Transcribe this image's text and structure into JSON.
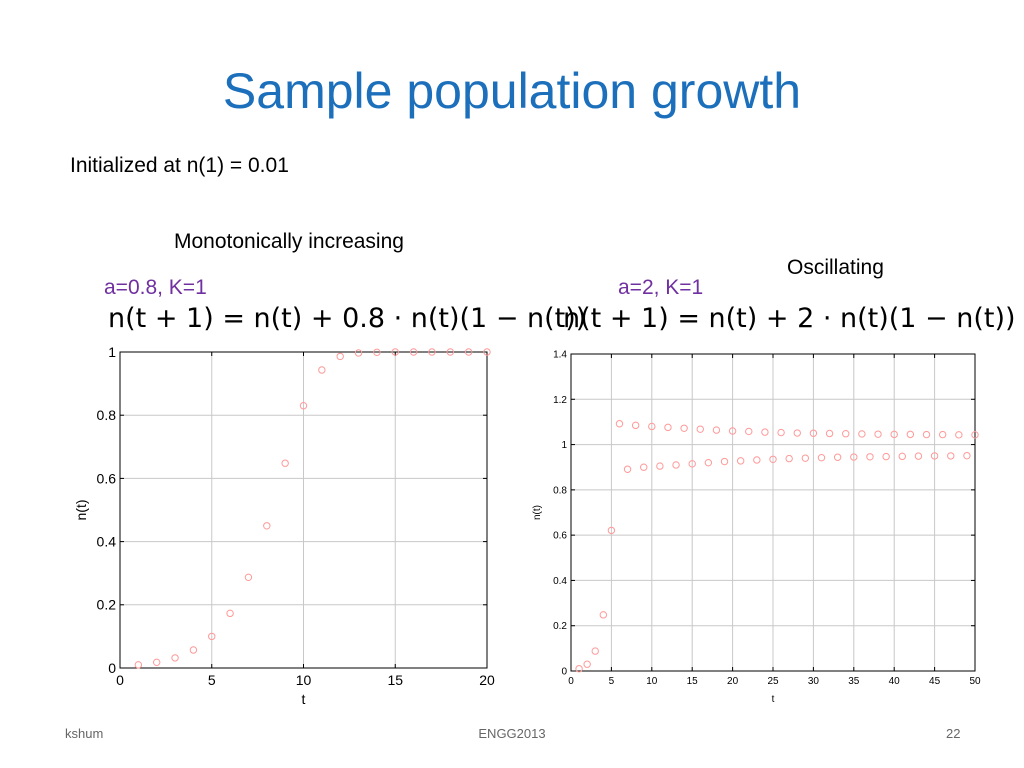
{
  "slide": {
    "title": "Sample population growth",
    "subtitle": "Initialized at n(1) = 0.01",
    "label_left": "Monotonically increasing",
    "label_right": "Oscillating",
    "params_left": "a=0.8, K=1",
    "params_right": "a=2, K=1",
    "equation_left": {
      "lhs": "n(t + 1) = n(t) + 0.8 · n(t)(1 − n(t))"
    },
    "equation_right": {
      "lhs": "n(t + 1) = n(t) + 2 · n(t)(1 − n(t))"
    },
    "footer_left": "kshum",
    "footer_center": "ENGG2013",
    "footer_right": "22",
    "marker_color": "#ff9999",
    "grid_color": "#c8c8c8"
  },
  "chart_data": [
    {
      "type": "scatter",
      "xlabel": "t",
      "ylabel": "n(t)",
      "xlim": [
        0,
        20
      ],
      "ylim": [
        0,
        1
      ],
      "xticks": [
        0,
        5,
        10,
        15,
        20
      ],
      "yticks": [
        0,
        0.2,
        0.4,
        0.6,
        0.8,
        1
      ],
      "xtick_labels": [
        "0",
        "5",
        "10",
        "15",
        "20"
      ],
      "ytick_labels": [
        "0",
        "0.2",
        "0.4",
        "0.6",
        "0.8",
        "1"
      ],
      "grid": true,
      "marker": "circle",
      "x": [
        1,
        2,
        3,
        4,
        5,
        6,
        7,
        8,
        9,
        10,
        11,
        12,
        13,
        14,
        15,
        16,
        17,
        18,
        19,
        20
      ],
      "y": [
        0.01,
        0.018,
        0.032,
        0.057,
        0.1,
        0.173,
        0.287,
        0.45,
        0.648,
        0.83,
        0.943,
        0.986,
        0.997,
        0.999,
        1,
        1,
        1,
        1,
        1,
        1
      ]
    },
    {
      "type": "scatter",
      "xlabel": "t",
      "ylabel": "n(t)",
      "xlim": [
        0,
        50
      ],
      "ylim": [
        0,
        1.4
      ],
      "xticks": [
        0,
        5,
        10,
        15,
        20,
        25,
        30,
        35,
        40,
        45,
        50
      ],
      "yticks": [
        0,
        0.2,
        0.4,
        0.6,
        0.8,
        1,
        1.2,
        1.4
      ],
      "xtick_labels": [
        "0",
        "5",
        "10",
        "15",
        "20",
        "25",
        "30",
        "35",
        "40",
        "45",
        "50"
      ],
      "ytick_labels": [
        "0",
        "0.2",
        "0.4",
        "0.6",
        "0.8",
        "1",
        "1.2",
        "1.4"
      ],
      "grid": true,
      "marker": "circle",
      "x": [
        1,
        2,
        3,
        4,
        5,
        6,
        7,
        8,
        9,
        10,
        11,
        12,
        13,
        14,
        15,
        16,
        17,
        18,
        19,
        20,
        21,
        22,
        23,
        24,
        25,
        26,
        27,
        28,
        29,
        30,
        31,
        32,
        33,
        34,
        35,
        36,
        37,
        38,
        39,
        40,
        41,
        42,
        43,
        44,
        45,
        46,
        47,
        48,
        49,
        50
      ],
      "y": [
        0.01,
        0.03,
        0.088,
        0.248,
        0.621,
        1.092,
        0.891,
        1.085,
        0.9,
        1.08,
        0.905,
        1.076,
        0.91,
        1.072,
        0.915,
        1.068,
        0.92,
        1.064,
        0.925,
        1.06,
        0.928,
        1.058,
        0.932,
        1.055,
        0.935,
        1.053,
        0.938,
        1.051,
        0.94,
        1.05,
        0.942,
        1.049,
        0.944,
        1.048,
        0.945,
        1.047,
        0.946,
        1.046,
        0.947,
        1.045,
        0.948,
        1.045,
        0.949,
        1.044,
        0.95,
        1.044,
        0.95,
        1.043,
        0.951,
        1.043
      ]
    }
  ]
}
